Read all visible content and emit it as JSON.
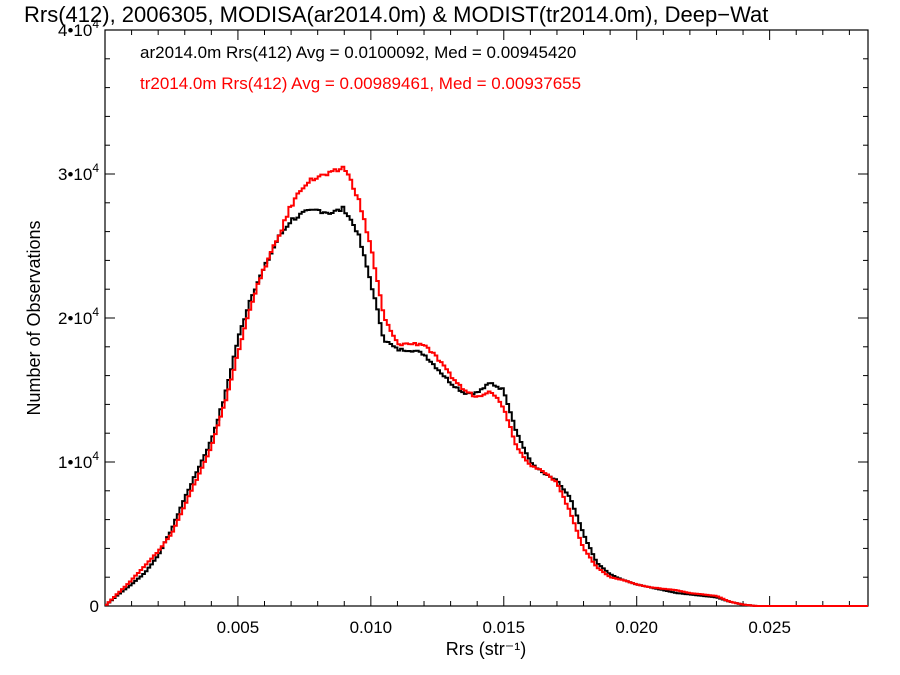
{
  "chart_data": {
    "type": "line",
    "title": "Rrs(412), 2006305, MODISA(ar2014.0m) & MODIST(tr2014.0m), Deep−Wat",
    "xlabel": "Rrs (str⁻¹)",
    "ylabel": "Number of Observations",
    "xlim": [
      0.0,
      0.0287
    ],
    "ylim": [
      0,
      40000
    ],
    "x_ticks": [
      0.005,
      0.01,
      0.015,
      0.02,
      0.025
    ],
    "x_tick_labels": [
      "0.005",
      "0.010",
      "0.015",
      "0.020",
      "0.025"
    ],
    "y_ticks": [
      0,
      10000,
      20000,
      30000,
      40000
    ],
    "y_tick_labels": [
      {
        "mantissa": "0",
        "exp": ""
      },
      {
        "mantissa": "1•10",
        "exp": "4"
      },
      {
        "mantissa": "2•10",
        "exp": "4"
      },
      {
        "mantissa": "3•10",
        "exp": "4"
      },
      {
        "mantissa": "4•10",
        "exp": "4"
      }
    ],
    "grid": false,
    "legend_position": "top-left",
    "series": [
      {
        "name": "ar2014.0m",
        "color": "#000000",
        "legend_text": "ar2014.0m Rrs(412) Avg = 0.0100092, Med = 0.00945420",
        "x": [
          0.0,
          0.0005,
          0.001,
          0.0015,
          0.002,
          0.0025,
          0.003,
          0.0035,
          0.004,
          0.0045,
          0.005,
          0.0055,
          0.006,
          0.0065,
          0.007,
          0.0075,
          0.008,
          0.0085,
          0.009,
          0.0095,
          0.01,
          0.0105,
          0.011,
          0.0115,
          0.012,
          0.0125,
          0.013,
          0.0135,
          0.014,
          0.0145,
          0.015,
          0.0155,
          0.016,
          0.0165,
          0.017,
          0.0175,
          0.018,
          0.0185,
          0.019,
          0.0195,
          0.02,
          0.0205,
          0.021,
          0.0215,
          0.022,
          0.0225,
          0.023,
          0.0235,
          0.024,
          0.0245,
          0.025,
          0.0255,
          0.026,
          0.027,
          0.0287
        ],
        "y": [
          0,
          800,
          1500,
          2300,
          3500,
          5300,
          7500,
          9500,
          11500,
          14500,
          18500,
          21500,
          23500,
          25500,
          26800,
          27300,
          27500,
          27300,
          27600,
          26000,
          22500,
          18500,
          17800,
          17800,
          17500,
          16500,
          15500,
          14800,
          14800,
          15500,
          15000,
          12000,
          10000,
          9200,
          8700,
          7500,
          5000,
          3000,
          2200,
          1800,
          1500,
          1300,
          1100,
          900,
          800,
          700,
          600,
          300,
          100,
          0,
          0,
          0,
          0,
          0,
          0
        ]
      },
      {
        "name": "tr2014.0m",
        "color": "#ff0000",
        "legend_text": "tr2014.0m Rrs(412) Avg = 0.00989461, Med = 0.00937655",
        "x": [
          0.0,
          0.0005,
          0.001,
          0.0015,
          0.002,
          0.0025,
          0.003,
          0.0035,
          0.004,
          0.0045,
          0.005,
          0.0055,
          0.006,
          0.0065,
          0.007,
          0.0075,
          0.008,
          0.0085,
          0.009,
          0.0095,
          0.01,
          0.0105,
          0.011,
          0.0115,
          0.012,
          0.0125,
          0.013,
          0.0135,
          0.014,
          0.0145,
          0.015,
          0.0155,
          0.016,
          0.0165,
          0.017,
          0.0175,
          0.018,
          0.0185,
          0.019,
          0.0195,
          0.02,
          0.0205,
          0.021,
          0.0215,
          0.022,
          0.0225,
          0.023,
          0.0235,
          0.024,
          0.0245,
          0.025,
          0.0255,
          0.026,
          0.027,
          0.0287
        ],
        "y": [
          0,
          900,
          1800,
          2800,
          3800,
          5000,
          7000,
          9000,
          11000,
          14000,
          17500,
          21000,
          23500,
          25500,
          27800,
          29300,
          29800,
          30000,
          30500,
          28500,
          25000,
          20000,
          18200,
          18200,
          18200,
          17200,
          16000,
          15000,
          14500,
          15000,
          13800,
          11000,
          9800,
          9300,
          8600,
          6500,
          4000,
          2700,
          2000,
          1800,
          1500,
          1300,
          1200,
          1100,
          900,
          800,
          700,
          300,
          100,
          0,
          0,
          0,
          0,
          0,
          0
        ]
      }
    ]
  }
}
